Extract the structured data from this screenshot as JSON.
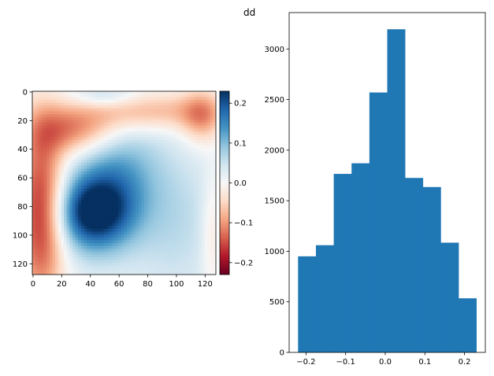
{
  "chart_data": [
    {
      "type": "heatmap",
      "title": "",
      "colormap": "RdBu",
      "x_ticks": [
        "0",
        "20",
        "40",
        "60",
        "80",
        "100",
        "120"
      ],
      "y_ticks": [
        "0",
        "20",
        "40",
        "60",
        "80",
        "100",
        "120"
      ],
      "xlim": [
        0,
        127
      ],
      "ylim": [
        127,
        0
      ],
      "value_range": [
        -0.23,
        0.23
      ],
      "description_regions": [
        {
          "region": "left band",
          "value": -0.2
        },
        {
          "region": "top band",
          "value": -0.12
        },
        {
          "region": "center-left blob",
          "value": 0.22
        },
        {
          "region": "right area",
          "value": 0.03
        }
      ],
      "colorbar_ticks": [
        "0.2",
        "0.1",
        "0.0",
        "−0.1",
        "−0.2"
      ],
      "colorbar_tick_values": [
        0.2,
        0.1,
        0.0,
        -0.1,
        -0.2
      ]
    },
    {
      "type": "bar",
      "title": "dd",
      "bin_edges": [
        -0.22,
        -0.175,
        -0.13,
        -0.085,
        -0.04,
        0.005,
        0.05,
        0.095,
        0.14,
        0.185,
        0.23
      ],
      "values": [
        950,
        1060,
        1765,
        1870,
        2570,
        3195,
        1725,
        1635,
        1085,
        535
      ],
      "x_ticks": [
        "−0.2",
        "−0.1",
        "0.0",
        "0.1",
        "0.2"
      ],
      "x_tick_values": [
        -0.2,
        -0.1,
        0.0,
        0.1,
        0.2
      ],
      "y_ticks": [
        "0",
        "500",
        "1000",
        "1500",
        "2000",
        "2500",
        "3000"
      ],
      "y_tick_values": [
        0,
        500,
        1000,
        1500,
        2000,
        2500,
        3000
      ],
      "xlim": [
        -0.2425,
        0.2525
      ],
      "ylim": [
        0,
        3360
      ],
      "color": "#1f77b4"
    }
  ]
}
